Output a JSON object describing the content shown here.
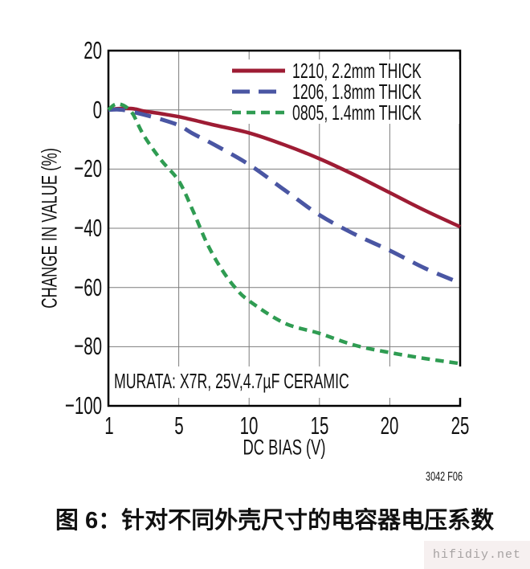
{
  "chart_data": {
    "type": "line",
    "title": "",
    "xlabel": "DC BIAS (V)",
    "ylabel": "CHANGE IN VALUE (%)",
    "x_ticks": [
      1,
      5,
      10,
      15,
      20,
      25
    ],
    "y_ticks": [
      20,
      0,
      -20,
      -40,
      -60,
      -80,
      -100
    ],
    "ylim": [
      -100,
      20
    ],
    "x_axis_note": "tick marks 1,5,10,15,20,25 are equally spaced",
    "grid": true,
    "legend_position": "top-right-inside",
    "annotation": "MURATA: X7R, 25V,4.7µF CERAMIC",
    "series": [
      {
        "name": "1210, 2.2mm THICK",
        "color": "#9E1C34",
        "style": "solid",
        "stroke_width": 4.5,
        "points": [
          [
            1,
            0
          ],
          [
            1.5,
            0.4
          ],
          [
            2,
            0.5
          ],
          [
            2.5,
            0.3
          ],
          [
            3,
            -0.4
          ],
          [
            4,
            -1.3
          ],
          [
            5,
            -2.3
          ],
          [
            6,
            -3.4
          ],
          [
            7.5,
            -5.1
          ],
          [
            10,
            -7.8
          ],
          [
            12.5,
            -11.8
          ],
          [
            15,
            -16.5
          ],
          [
            17.5,
            -22
          ],
          [
            20,
            -28
          ],
          [
            22.5,
            -34
          ],
          [
            25,
            -39.5
          ]
        ]
      },
      {
        "name": "1206, 1.8mm THICK",
        "color": "#4A56A3",
        "style": "long-dash",
        "stroke_width": 5,
        "points": [
          [
            1,
            0
          ],
          [
            1.5,
            0.1
          ],
          [
            2,
            -0.2
          ],
          [
            3,
            -1.6
          ],
          [
            4,
            -3.2
          ],
          [
            5,
            -5.2
          ],
          [
            6,
            -8
          ],
          [
            7.5,
            -11.7
          ],
          [
            10,
            -18.5
          ],
          [
            12.5,
            -27
          ],
          [
            15,
            -35.5
          ],
          [
            17.5,
            -42
          ],
          [
            20,
            -47.5
          ],
          [
            22.5,
            -53.5
          ],
          [
            25,
            -58.5
          ]
        ]
      },
      {
        "name": "0805, 1.4mm THICK",
        "color": "#2F9C52",
        "style": "short-dash",
        "stroke_width": 4.5,
        "points": [
          [
            1,
            0
          ],
          [
            1.3,
            1.6
          ],
          [
            1.6,
            2
          ],
          [
            2,
            1
          ],
          [
            2.4,
            -1.5
          ],
          [
            3,
            -8.5
          ],
          [
            4,
            -17
          ],
          [
            5,
            -24
          ],
          [
            6,
            -34
          ],
          [
            7,
            -45
          ],
          [
            8,
            -53.5
          ],
          [
            9,
            -60
          ],
          [
            10,
            -64.5
          ],
          [
            12.5,
            -72
          ],
          [
            15,
            -75.5
          ],
          [
            17.5,
            -79.5
          ],
          [
            20,
            -82
          ],
          [
            22.5,
            -84
          ],
          [
            25,
            -85.7
          ]
        ]
      }
    ]
  },
  "labels": {
    "y_ticks": [
      "20",
      "0",
      "−20",
      "−40",
      "−60",
      "−80",
      "−100"
    ],
    "x_ticks": [
      "1",
      "5",
      "10",
      "15",
      "20",
      "25"
    ],
    "xlabel": "DC BIAS (V)",
    "ylabel": "CHANGE IN VALUE (%)",
    "annotation": "MURATA: X7R, 25V,4.7µF CERAMIC",
    "fig_code": "3042 F06",
    "caption": "图 6：针对不同外壳尺寸的电容器电压系数",
    "watermark": "hifidiy.net"
  },
  "legend": {
    "items": [
      {
        "label": "1210, 2.2mm THICK"
      },
      {
        "label": "1206, 1.8mm THICK"
      },
      {
        "label": "0805, 1.4mm THICK"
      }
    ]
  },
  "colors": {
    "series_1210": "#9E1C34",
    "series_1206": "#4A56A3",
    "series_0805": "#2F9C52",
    "grid": "#7D7D7D",
    "axis": "#000000",
    "text": "#111111",
    "watermark_bg": "#F6F0F0",
    "watermark_text": "#A6A2A2"
  }
}
